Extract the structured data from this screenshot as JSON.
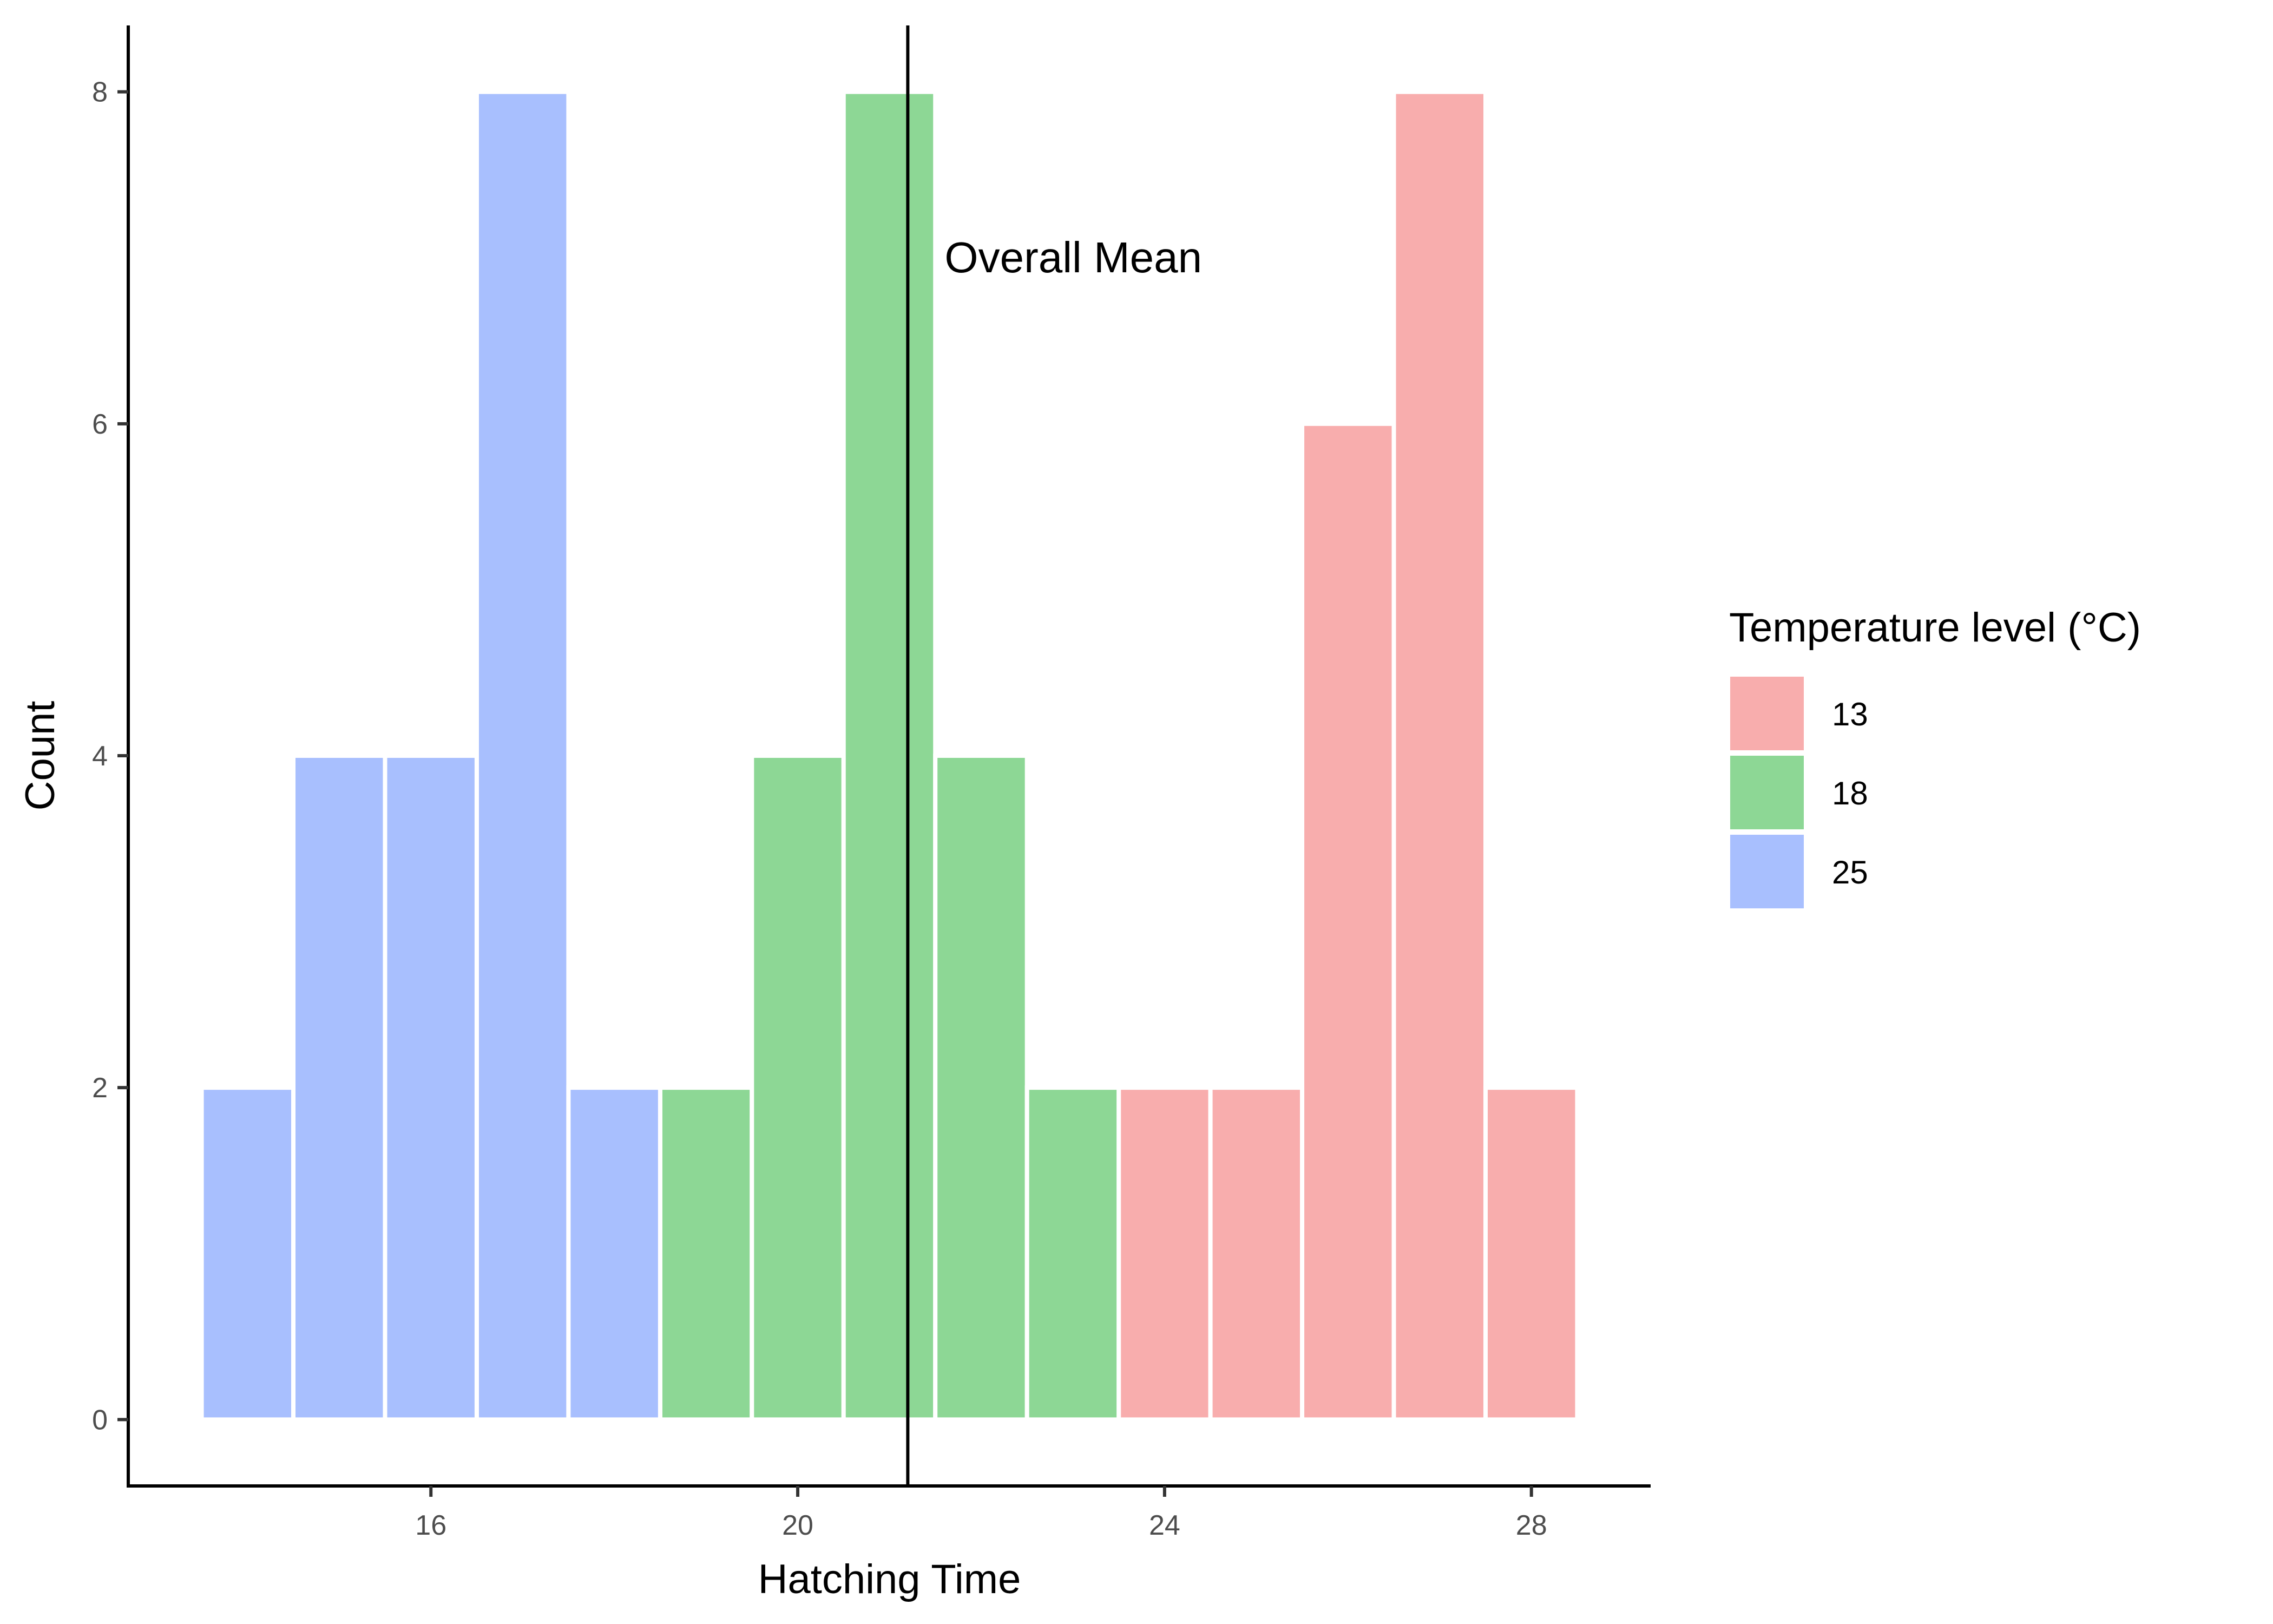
{
  "chart_data": {
    "type": "bar",
    "xlabel": "Hatching Time",
    "ylabel": "Count",
    "xlim": [
      12.7,
      29.3
    ],
    "ylim": [
      -0.4,
      8.4
    ],
    "x_ticks": [
      "16",
      "20",
      "24",
      "28"
    ],
    "x_tick_values": [
      16,
      20,
      24,
      28
    ],
    "y_ticks": [
      "0",
      "2",
      "4",
      "6",
      "8"
    ],
    "y_tick_values": [
      0,
      2,
      4,
      6,
      8
    ],
    "grid": false,
    "legend": {
      "title": "Temperature level (°C)",
      "placement": "right",
      "entries": [
        {
          "label": "13",
          "color": "#F8ADAD"
        },
        {
          "label": "18",
          "color": "#8DD795"
        },
        {
          "label": "25",
          "color": "#A8BFFE"
        }
      ]
    },
    "series": [
      {
        "name": "13",
        "color": "#F8ADAD",
        "x": [
          24,
          25,
          26,
          27,
          28
        ],
        "values": [
          2,
          2,
          6,
          8,
          2
        ]
      },
      {
        "name": "18",
        "color": "#8DD795",
        "x": [
          19,
          20,
          21,
          22,
          23
        ],
        "values": [
          2,
          4,
          8,
          4,
          2
        ]
      },
      {
        "name": "25",
        "color": "#A8BFFE",
        "x": [
          14,
          15,
          16,
          17,
          18
        ],
        "values": [
          2,
          4,
          4,
          8,
          2
        ]
      }
    ],
    "bin_width": 1,
    "reference_line": {
      "x": 21.2,
      "label": "Overall Mean"
    }
  }
}
